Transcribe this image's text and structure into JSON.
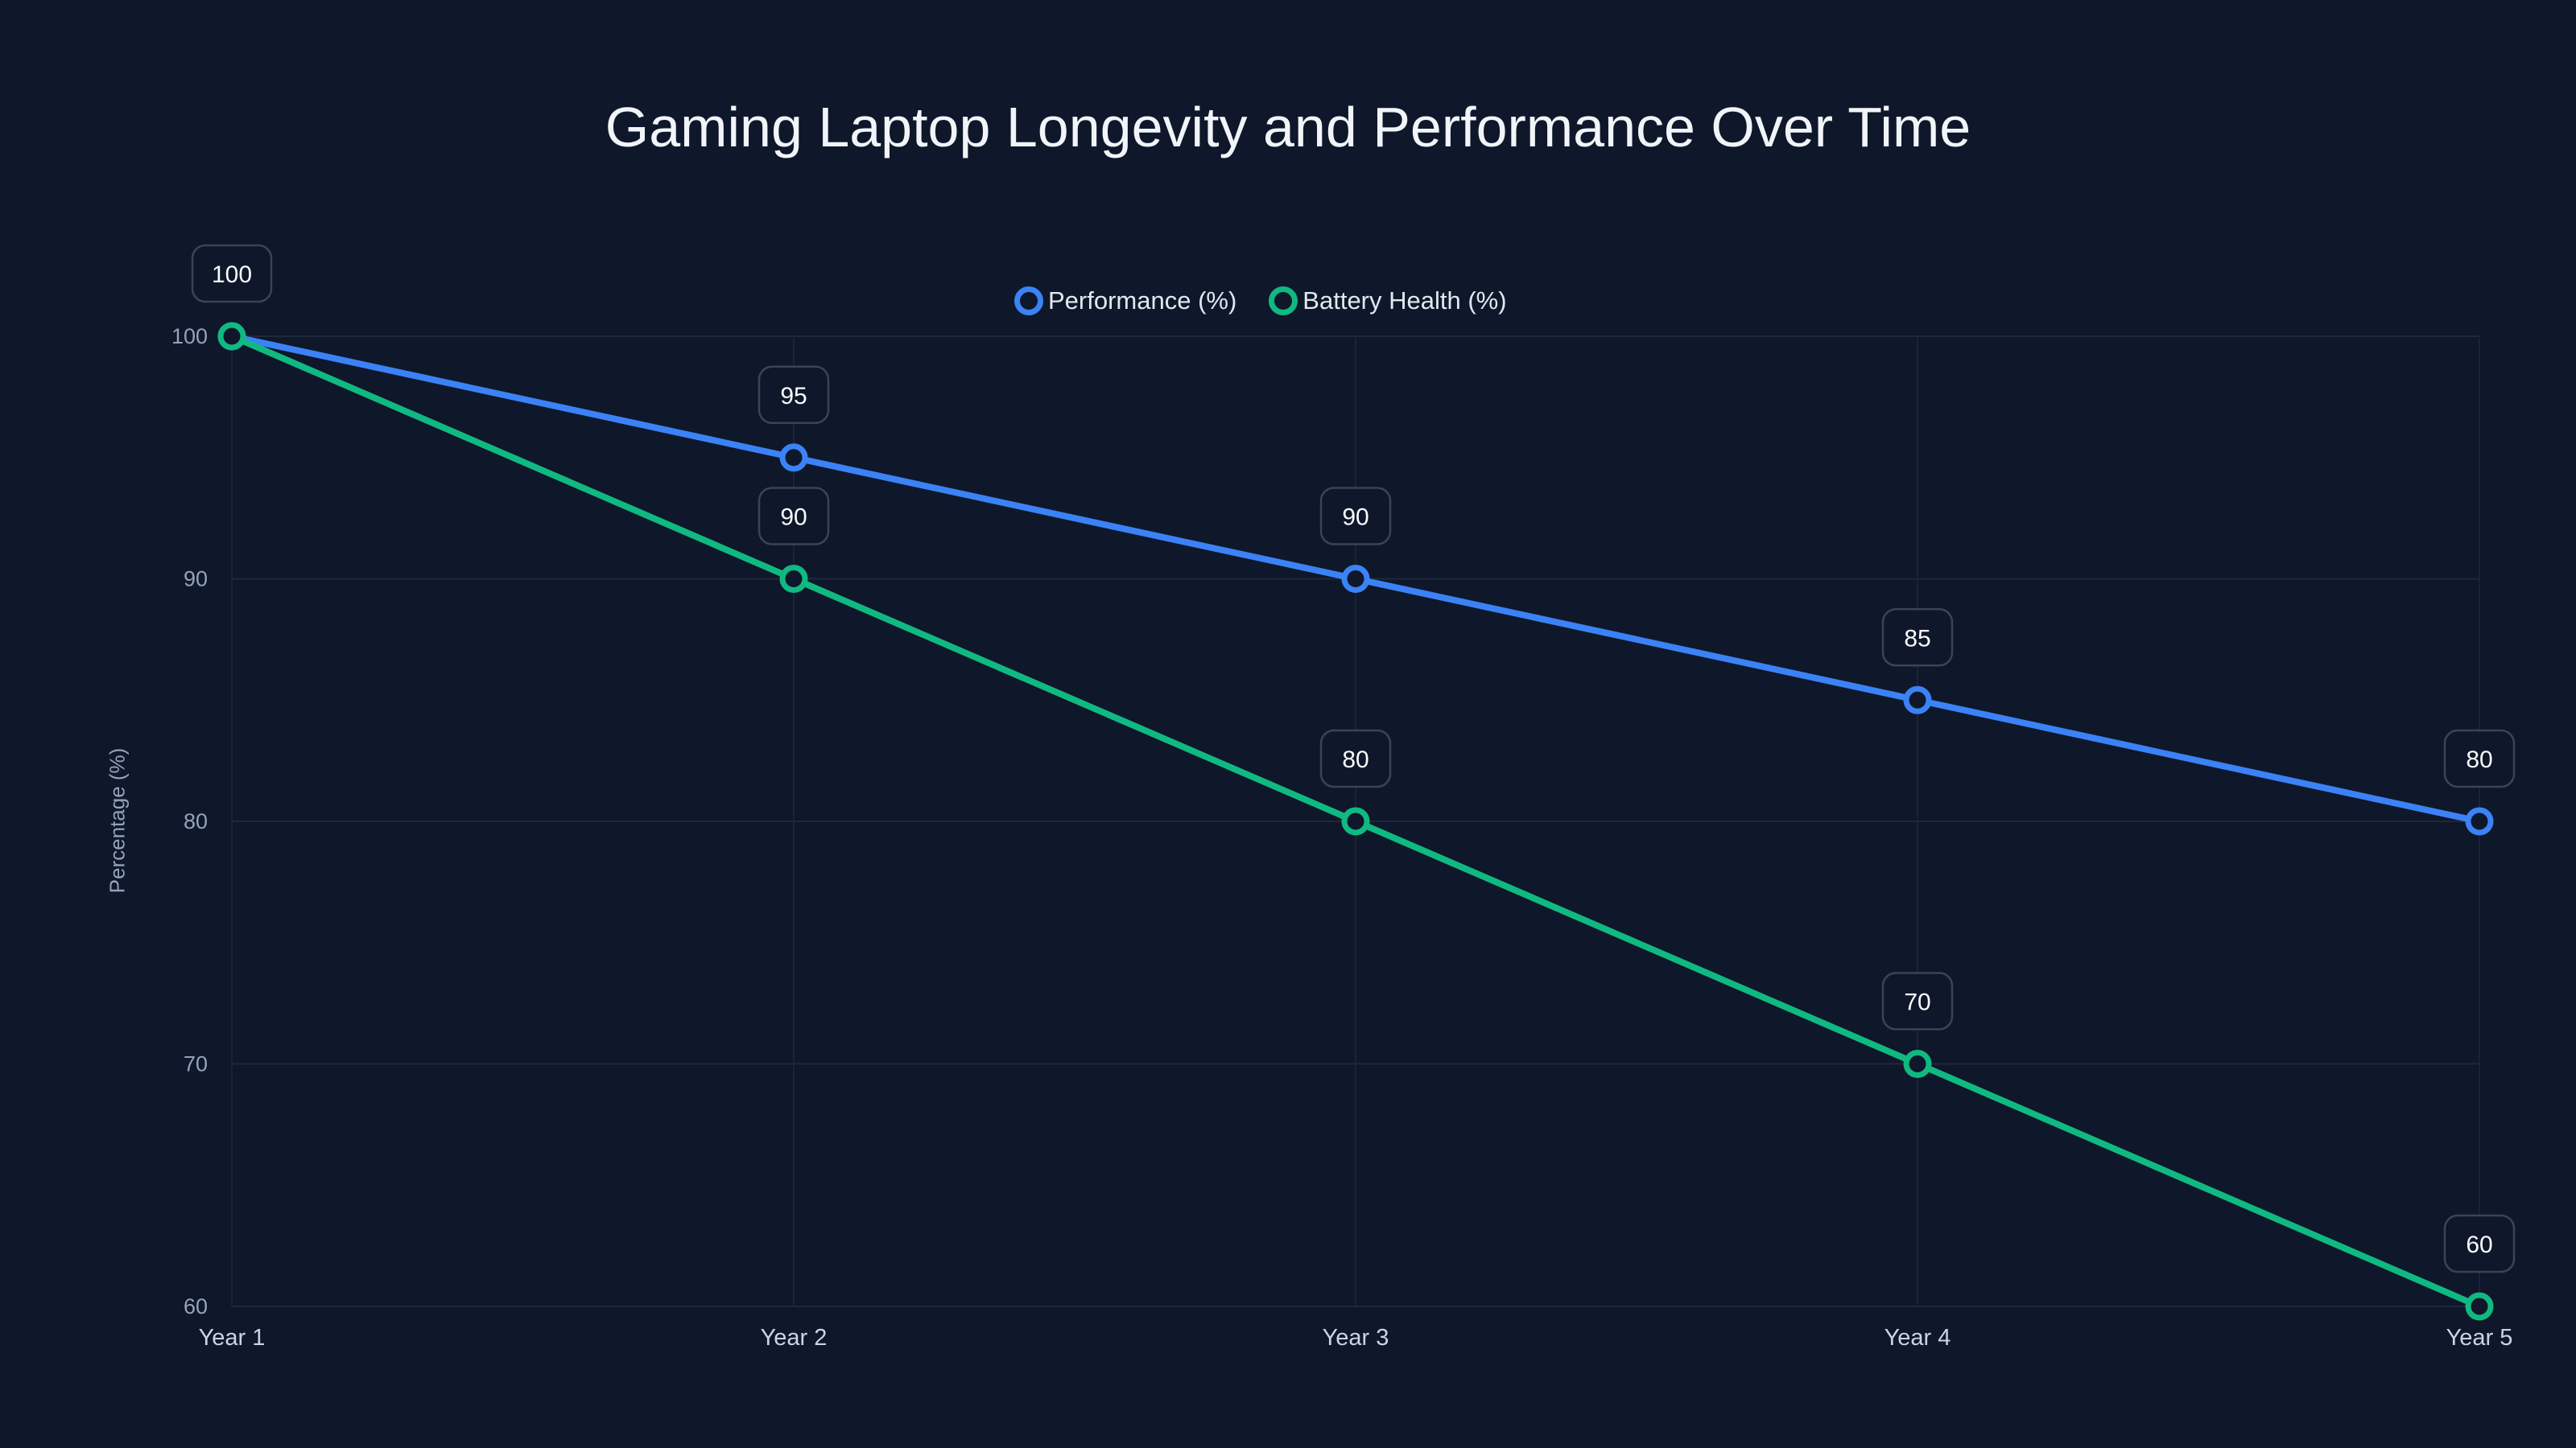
{
  "title": "Gaming Laptop Longevity and Performance Over Time",
  "legend": [
    {
      "label": "Performance (%)",
      "color": "#3b82f6"
    },
    {
      "label": "Battery Health (%)",
      "color": "#10b981"
    }
  ],
  "y_axis_label": "Percentage (%)",
  "chart_data": {
    "type": "line",
    "title": "Gaming Laptop Longevity and Performance Over Time",
    "xlabel": "",
    "ylabel": "Percentage (%)",
    "categories": [
      "Year 1",
      "Year 2",
      "Year 3",
      "Year 4",
      "Year 5"
    ],
    "series": [
      {
        "name": "Performance (%)",
        "color": "#3b82f6",
        "values": [
          100,
          95,
          90,
          85,
          80
        ]
      },
      {
        "name": "Battery Health (%)",
        "color": "#10b981",
        "values": [
          100,
          90,
          80,
          70,
          60
        ]
      }
    ],
    "ylim": [
      60,
      100
    ],
    "yticks": [
      60,
      70,
      80,
      90,
      100
    ],
    "grid": true,
    "legend_position": "top",
    "data_labels": true
  }
}
